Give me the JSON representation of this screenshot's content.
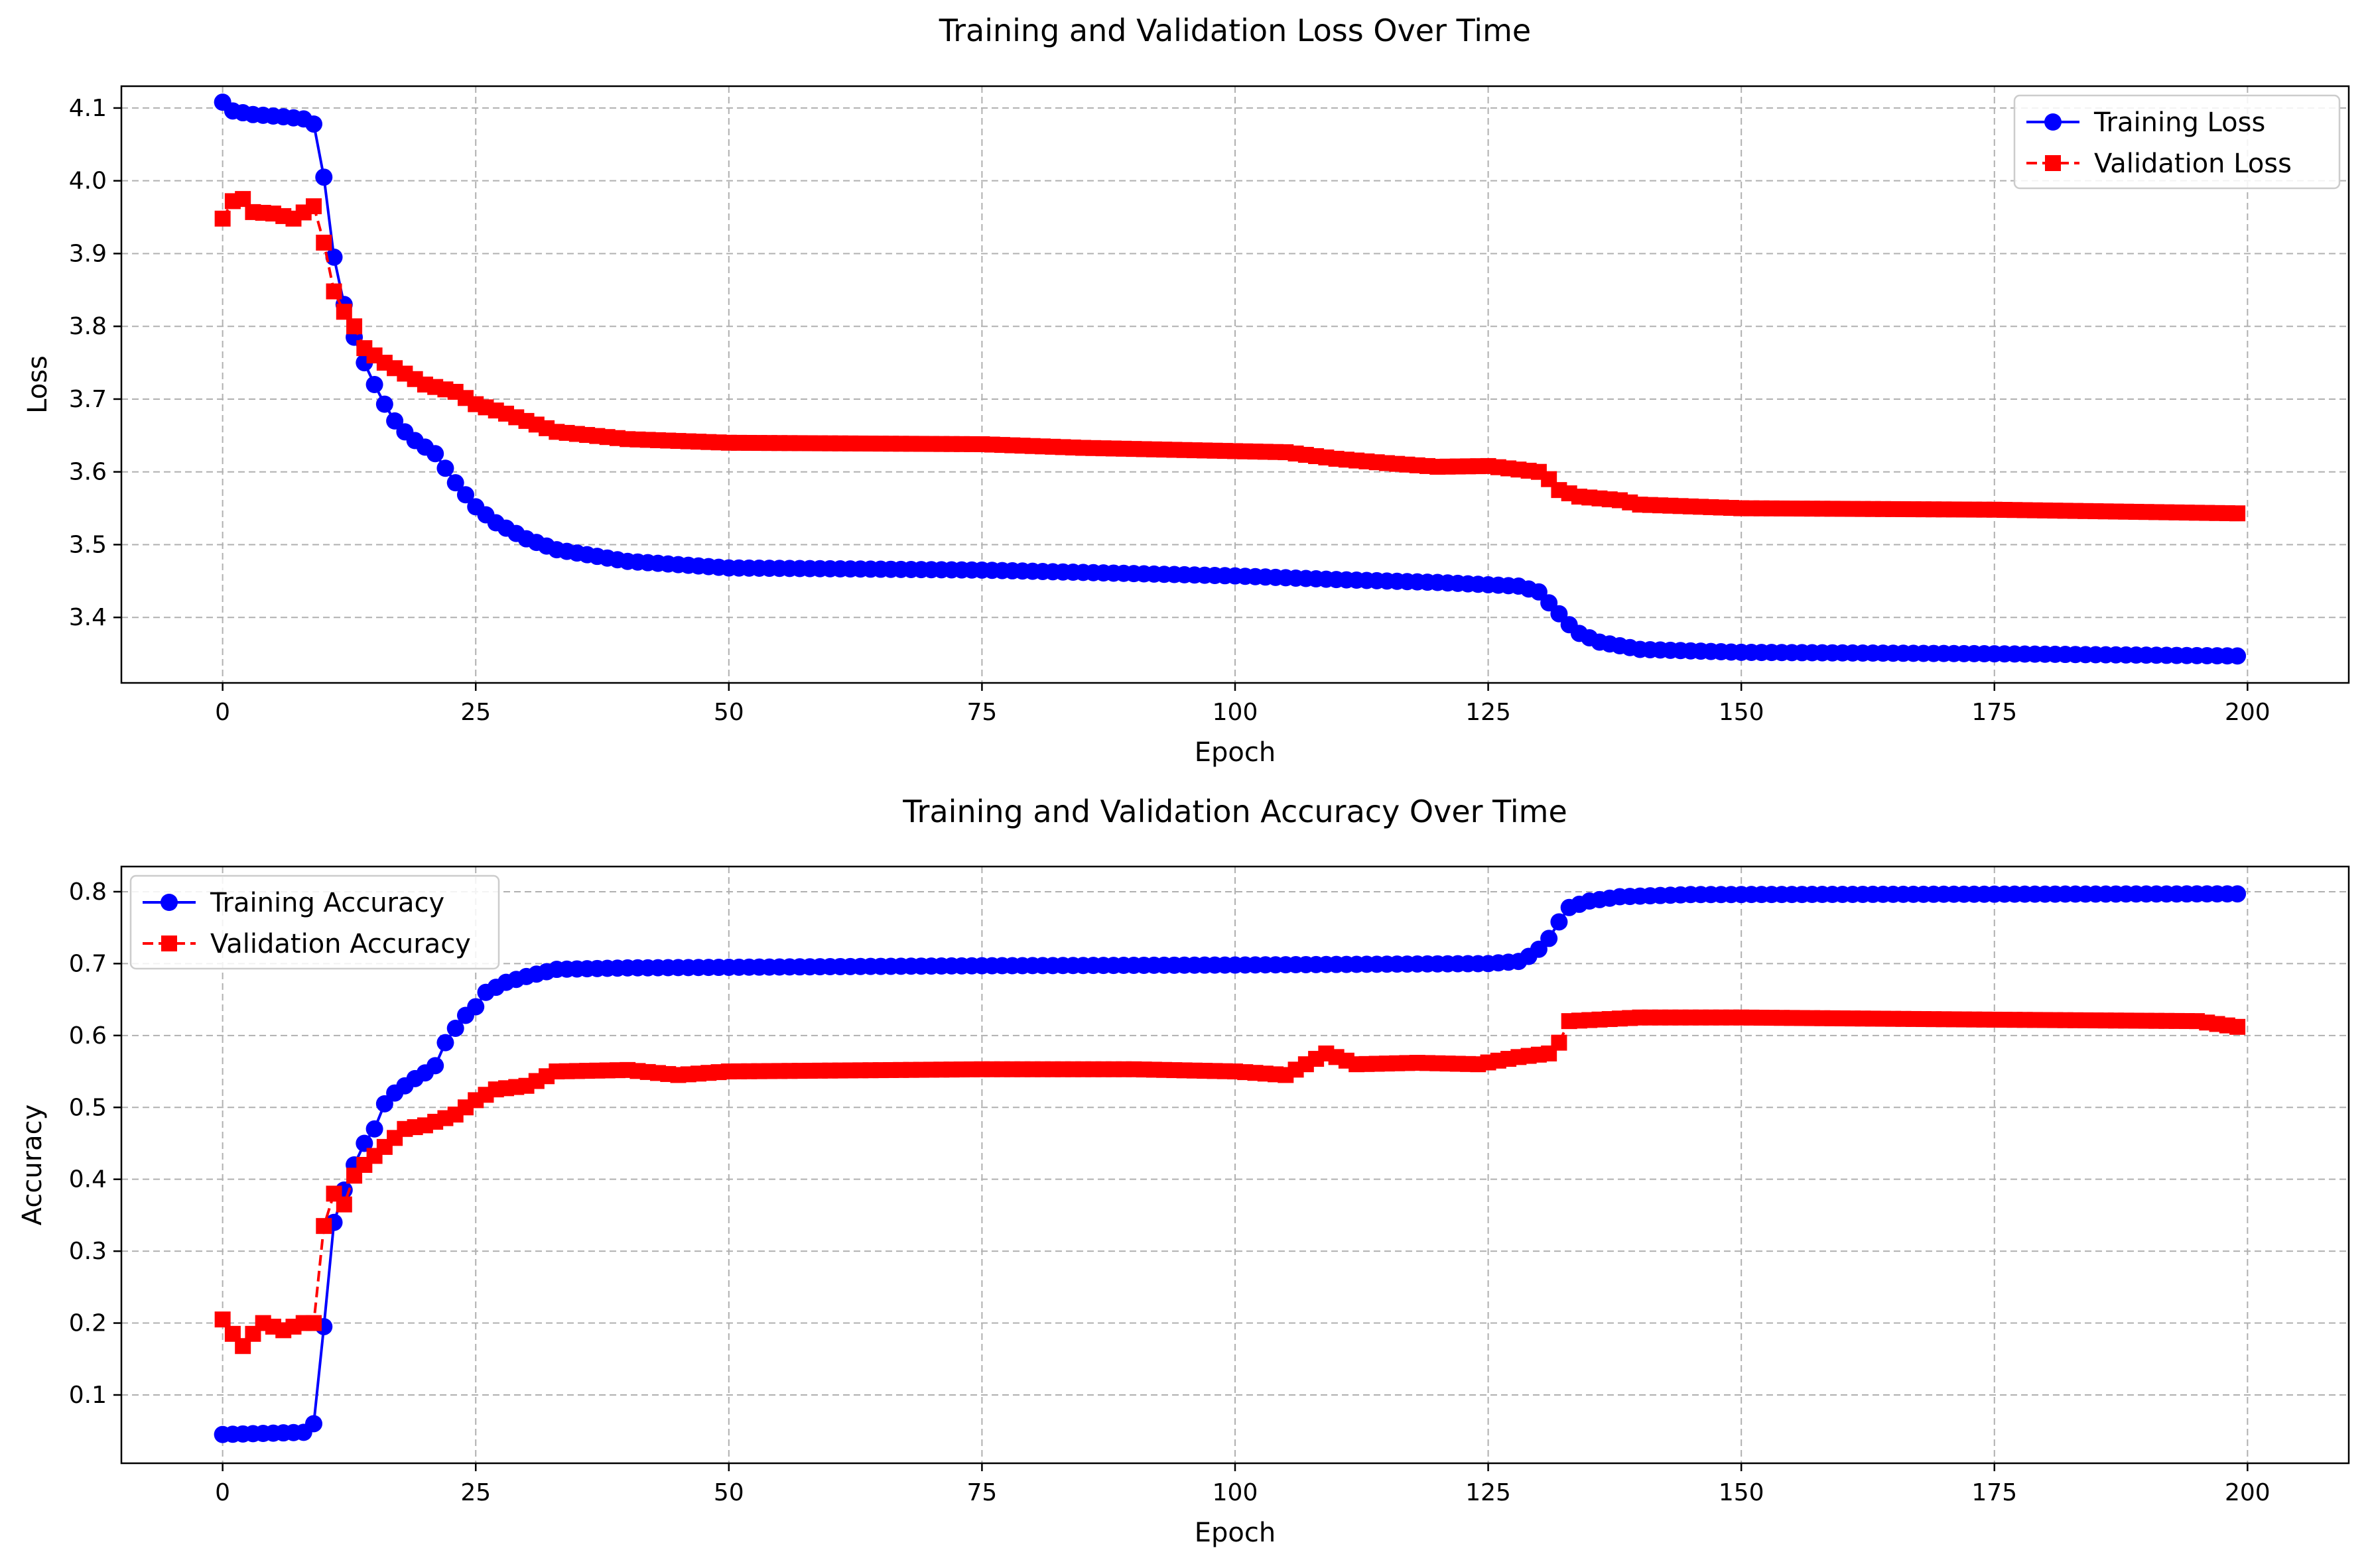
{
  "chart_data": [
    {
      "type": "line",
      "title": "Training and Validation Loss Over Time",
      "xlabel": "Epoch",
      "ylabel": "Loss",
      "xlim": [
        -10,
        210
      ],
      "ylim": [
        3.31,
        4.13
      ],
      "xticks": [
        0,
        25,
        50,
        75,
        100,
        125,
        150,
        175,
        200
      ],
      "xtick_labels": [
        "0",
        "25",
        "50",
        "75",
        "100",
        "125",
        "150",
        "175",
        "200"
      ],
      "yticks": [
        3.4,
        3.5,
        3.6,
        3.7,
        3.8,
        3.9,
        4.0,
        4.1
      ],
      "ytick_labels": [
        "3.4",
        "3.5",
        "3.6",
        "3.7",
        "3.8",
        "3.9",
        "4.0",
        "4.1"
      ],
      "grid": true,
      "legend_position": "top-right",
      "series": [
        {
          "name": "Training Loss",
          "color": "#0000ff",
          "marker": "circle",
          "line_style": "solid",
          "keypoints": [
            [
              0,
              4.108
            ],
            [
              1,
              4.096
            ],
            [
              3,
              4.091
            ],
            [
              6,
              4.088
            ],
            [
              8,
              4.085
            ],
            [
              9,
              4.078
            ],
            [
              10,
              4.005
            ],
            [
              11,
              3.895
            ],
            [
              12,
              3.83
            ],
            [
              13,
              3.785
            ],
            [
              14,
              3.75
            ],
            [
              15,
              3.72
            ],
            [
              16,
              3.693
            ],
            [
              17,
              3.67
            ],
            [
              18,
              3.655
            ],
            [
              19,
              3.643
            ],
            [
              20,
              3.634
            ],
            [
              21,
              3.625
            ],
            [
              22,
              3.605
            ],
            [
              23,
              3.585
            ],
            [
              25,
              3.552
            ],
            [
              27,
              3.53
            ],
            [
              30,
              3.508
            ],
            [
              33,
              3.493
            ],
            [
              40,
              3.477
            ],
            [
              50,
              3.468
            ],
            [
              75,
              3.465
            ],
            [
              100,
              3.457
            ],
            [
              110,
              3.452
            ],
            [
              120,
              3.448
            ],
            [
              128,
              3.443
            ],
            [
              130,
              3.435
            ],
            [
              131,
              3.42
            ],
            [
              132,
              3.405
            ],
            [
              133,
              3.39
            ],
            [
              134,
              3.378
            ],
            [
              136,
              3.366
            ],
            [
              140,
              3.356
            ],
            [
              150,
              3.352
            ],
            [
              175,
              3.35
            ],
            [
              199,
              3.347
            ]
          ]
        },
        {
          "name": "Validation Loss",
          "color": "#ff0000",
          "marker": "square",
          "line_style": "dashed",
          "keypoints": [
            [
              0,
              3.948
            ],
            [
              1,
              3.972
            ],
            [
              2,
              3.975
            ],
            [
              3,
              3.957
            ],
            [
              5,
              3.955
            ],
            [
              7,
              3.948
            ],
            [
              9,
              3.965
            ],
            [
              10,
              3.915
            ],
            [
              11,
              3.848
            ],
            [
              12,
              3.82
            ],
            [
              13,
              3.8
            ],
            [
              14,
              3.77
            ],
            [
              16,
              3.75
            ],
            [
              18,
              3.735
            ],
            [
              20,
              3.72
            ],
            [
              23,
              3.71
            ],
            [
              25,
              3.693
            ],
            [
              28,
              3.68
            ],
            [
              30,
              3.67
            ],
            [
              33,
              3.655
            ],
            [
              40,
              3.645
            ],
            [
              50,
              3.64
            ],
            [
              75,
              3.638
            ],
            [
              85,
              3.633
            ],
            [
              95,
              3.63
            ],
            [
              105,
              3.627
            ],
            [
              110,
              3.618
            ],
            [
              115,
              3.612
            ],
            [
              120,
              3.607
            ],
            [
              125,
              3.608
            ],
            [
              130,
              3.6
            ],
            [
              131,
              3.59
            ],
            [
              132,
              3.575
            ],
            [
              134,
              3.566
            ],
            [
              138,
              3.561
            ],
            [
              140,
              3.555
            ],
            [
              150,
              3.55
            ],
            [
              175,
              3.548
            ],
            [
              199,
              3.543
            ]
          ]
        }
      ]
    },
    {
      "type": "line",
      "title": "Training and Validation Accuracy Over Time",
      "xlabel": "Epoch",
      "ylabel": "Accuracy",
      "xlim": [
        -10,
        210
      ],
      "ylim": [
        0.005,
        0.835
      ],
      "xticks": [
        0,
        25,
        50,
        75,
        100,
        125,
        150,
        175,
        200
      ],
      "xtick_labels": [
        "0",
        "25",
        "50",
        "75",
        "100",
        "125",
        "150",
        "175",
        "200"
      ],
      "yticks": [
        0.1,
        0.2,
        0.3,
        0.4,
        0.5,
        0.6,
        0.7,
        0.8
      ],
      "ytick_labels": [
        "0.1",
        "0.2",
        "0.3",
        "0.4",
        "0.5",
        "0.6",
        "0.7",
        "0.8"
      ],
      "grid": true,
      "legend_position": "top-left",
      "series": [
        {
          "name": "Training Accuracy",
          "color": "#0000ff",
          "marker": "circle",
          "line_style": "solid",
          "keypoints": [
            [
              0,
              0.045
            ],
            [
              8,
              0.048
            ],
            [
              9,
              0.06
            ],
            [
              10,
              0.195
            ],
            [
              11,
              0.34
            ],
            [
              12,
              0.385
            ],
            [
              13,
              0.42
            ],
            [
              14,
              0.45
            ],
            [
              15,
              0.47
            ],
            [
              16,
              0.505
            ],
            [
              17,
              0.52
            ],
            [
              18,
              0.53
            ],
            [
              19,
              0.54
            ],
            [
              20,
              0.548
            ],
            [
              21,
              0.558
            ],
            [
              22,
              0.59
            ],
            [
              23,
              0.61
            ],
            [
              24,
              0.628
            ],
            [
              25,
              0.64
            ],
            [
              26,
              0.66
            ],
            [
              28,
              0.674
            ],
            [
              30,
              0.682
            ],
            [
              33,
              0.692
            ],
            [
              40,
              0.694
            ],
            [
              75,
              0.697
            ],
            [
              100,
              0.698
            ],
            [
              125,
              0.7
            ],
            [
              128,
              0.703
            ],
            [
              129,
              0.71
            ],
            [
              130,
              0.72
            ],
            [
              131,
              0.735
            ],
            [
              132,
              0.758
            ],
            [
              133,
              0.778
            ],
            [
              135,
              0.787
            ],
            [
              138,
              0.793
            ],
            [
              145,
              0.796
            ],
            [
              199,
              0.797
            ]
          ]
        },
        {
          "name": "Validation Accuracy",
          "color": "#ff0000",
          "marker": "square",
          "line_style": "dashed",
          "keypoints": [
            [
              0,
              0.205
            ],
            [
              1,
              0.185
            ],
            [
              2,
              0.168
            ],
            [
              3,
              0.185
            ],
            [
              4,
              0.2
            ],
            [
              6,
              0.19
            ],
            [
              8,
              0.2
            ],
            [
              9,
              0.2
            ],
            [
              10,
              0.335
            ],
            [
              11,
              0.38
            ],
            [
              12,
              0.365
            ],
            [
              13,
              0.405
            ],
            [
              14,
              0.42
            ],
            [
              16,
              0.445
            ],
            [
              18,
              0.47
            ],
            [
              20,
              0.475
            ],
            [
              23,
              0.49
            ],
            [
              25,
              0.51
            ],
            [
              27,
              0.525
            ],
            [
              30,
              0.53
            ],
            [
              33,
              0.55
            ],
            [
              40,
              0.552
            ],
            [
              45,
              0.545
            ],
            [
              50,
              0.55
            ],
            [
              75,
              0.553
            ],
            [
              90,
              0.553
            ],
            [
              100,
              0.55
            ],
            [
              105,
              0.545
            ],
            [
              109,
              0.575
            ],
            [
              112,
              0.56
            ],
            [
              118,
              0.562
            ],
            [
              124,
              0.56
            ],
            [
              128,
              0.57
            ],
            [
              131,
              0.575
            ],
            [
              132,
              0.59
            ],
            [
              133,
              0.62
            ],
            [
              140,
              0.625
            ],
            [
              150,
              0.625
            ],
            [
              175,
              0.622
            ],
            [
              195,
              0.62
            ],
            [
              199,
              0.612
            ]
          ]
        }
      ]
    }
  ]
}
